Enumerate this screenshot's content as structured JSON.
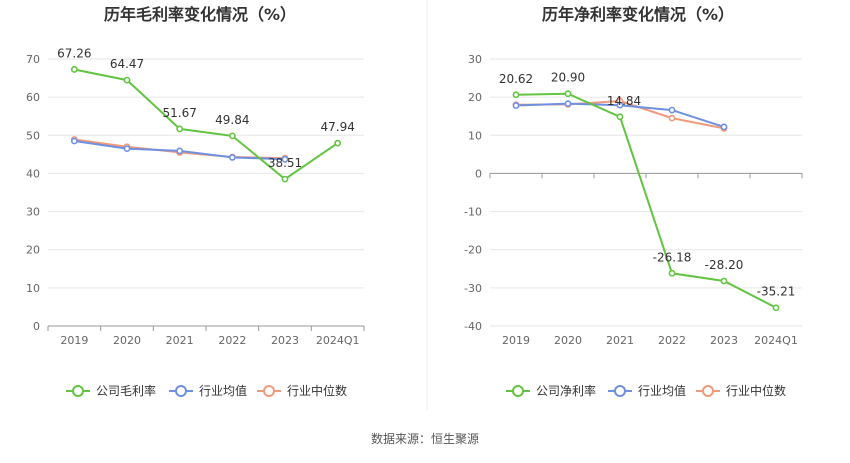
{
  "source_label": "数据来源：恒生聚源",
  "colors": {
    "company": "#62c440",
    "avg": "#6f8fe0",
    "median": "#ef9a7c",
    "grid": "#e6e6e6",
    "axis": "#999999"
  },
  "chart_data": [
    {
      "type": "line",
      "title": "历年毛利率变化情况（%）",
      "categories": [
        "2019",
        "2020",
        "2021",
        "2022",
        "2023",
        "2024Q1"
      ],
      "ylim": [
        0,
        70
      ],
      "yticks": [
        0,
        10,
        20,
        30,
        40,
        50,
        60,
        70
      ],
      "grid": true,
      "legend_position": "bottom",
      "series": [
        {
          "name": "公司毛利率",
          "values": [
            67.26,
            64.47,
            51.67,
            49.84,
            38.51,
            47.94
          ],
          "labels": [
            "67.26",
            "64.47",
            "51.67",
            "49.84",
            "38.51",
            "47.94"
          ]
        },
        {
          "name": "行业均值",
          "values": [
            48.5,
            46.5,
            45.9,
            44.2,
            43.7,
            null
          ]
        },
        {
          "name": "行业中位数",
          "values": [
            48.9,
            47.0,
            45.5,
            44.3,
            44.0,
            null
          ]
        }
      ]
    },
    {
      "type": "line",
      "title": "历年净利率变化情况（%）",
      "categories": [
        "2019",
        "2020",
        "2021",
        "2022",
        "2023",
        "2024Q1"
      ],
      "ylim": [
        -40,
        30
      ],
      "yticks": [
        -40,
        -30,
        -20,
        -10,
        0,
        10,
        20,
        30
      ],
      "grid": true,
      "legend_position": "bottom",
      "series": [
        {
          "name": "公司净利率",
          "values": [
            20.62,
            20.9,
            14.84,
            -26.18,
            -28.2,
            -35.21
          ],
          "labels": [
            "20.62",
            "20.90",
            "14.84",
            "-26.18",
            "-28.20",
            "-35.21"
          ]
        },
        {
          "name": "行业均值",
          "values": [
            17.8,
            18.3,
            17.9,
            16.6,
            12.2,
            null
          ]
        },
        {
          "name": "行业中位数",
          "values": [
            18.0,
            18.1,
            19.0,
            14.5,
            11.8,
            null
          ]
        }
      ]
    }
  ]
}
